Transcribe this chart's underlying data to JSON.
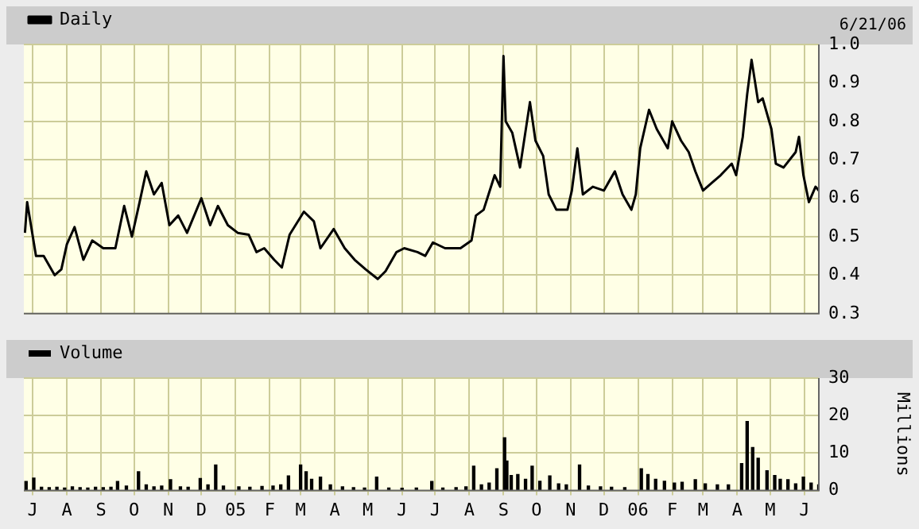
{
  "chart_data": [
    {
      "type": "line",
      "annotations": [
        "6/21/06"
      ],
      "legend": "top left",
      "grid": true,
      "marker": "none",
      "tick_labels": "y",
      "x": [
        "2004-06-24",
        "2004-06-26",
        "2004-06-30",
        "2004-07-04",
        "2004-07-11",
        "2004-07-21",
        "2004-07-27",
        "2004-08-01",
        "2004-08-08",
        "2004-08-16",
        "2004-08-24",
        "2004-09-03",
        "2004-09-14",
        "2004-09-22",
        "2004-09-29",
        "2004-10-06",
        "2004-10-12",
        "2004-10-19",
        "2004-10-26",
        "2004-11-02",
        "2004-11-10",
        "2004-11-18",
        "2004-12-01",
        "2004-12-09",
        "2004-12-16",
        "2004-12-25",
        "2005-01-03",
        "2005-01-13",
        "2005-01-20",
        "2005-01-27",
        "2005-02-05",
        "2005-02-12",
        "2005-02-19",
        "2005-03-04",
        "2005-03-13",
        "2005-03-19",
        "2005-03-31",
        "2005-04-10",
        "2005-04-19",
        "2005-04-29",
        "2005-05-10",
        "2005-05-17",
        "2005-05-27",
        "2005-06-03",
        "2005-06-15",
        "2005-06-22",
        "2005-06-29",
        "2005-07-10",
        "2005-07-24",
        "2005-08-03",
        "2005-08-07",
        "2005-08-14",
        "2005-08-24",
        "2005-08-29",
        "2005-09-01",
        "2005-09-03",
        "2005-09-09",
        "2005-09-16",
        "2005-09-25",
        "2005-09-30",
        "2005-10-07",
        "2005-10-12",
        "2005-10-19",
        "2005-10-29",
        "2005-11-02",
        "2005-11-07",
        "2005-11-12",
        "2005-11-21",
        "2005-12-01",
        "2005-12-11",
        "2005-12-18",
        "2005-12-26",
        "2005-12-30",
        "2006-01-03",
        "2006-01-11",
        "2006-01-18",
        "2006-01-28",
        "2006-02-01",
        "2006-02-09",
        "2006-02-16",
        "2006-02-22",
        "2006-03-01",
        "2006-03-09",
        "2006-03-17",
        "2006-03-27",
        "2006-03-31",
        "2006-04-06",
        "2006-04-10",
        "2006-04-14",
        "2006-04-20",
        "2006-04-24",
        "2006-05-02",
        "2006-05-06",
        "2006-05-13",
        "2006-05-24",
        "2006-05-27",
        "2006-05-31",
        "2006-06-05",
        "2006-06-11",
        "2006-06-14"
      ],
      "series": [
        {
          "name": "Daily",
          "color": "#000000",
          "values": [
            0.51,
            0.59,
            0.52,
            0.45,
            0.45,
            0.4,
            0.415,
            0.48,
            0.525,
            0.44,
            0.49,
            0.47,
            0.47,
            0.58,
            0.5,
            0.59,
            0.67,
            0.61,
            0.64,
            0.53,
            0.555,
            0.51,
            0.6,
            0.53,
            0.58,
            0.53,
            0.51,
            0.505,
            0.46,
            0.47,
            0.44,
            0.42,
            0.505,
            0.565,
            0.54,
            0.47,
            0.52,
            0.47,
            0.44,
            0.415,
            0.39,
            0.41,
            0.46,
            0.47,
            0.46,
            0.45,
            0.485,
            0.47,
            0.47,
            0.49,
            0.555,
            0.57,
            0.66,
            0.63,
            0.97,
            0.8,
            0.77,
            0.68,
            0.85,
            0.75,
            0.71,
            0.61,
            0.57,
            0.57,
            0.62,
            0.73,
            0.61,
            0.63,
            0.62,
            0.67,
            0.61,
            0.57,
            0.61,
            0.73,
            0.83,
            0.78,
            0.73,
            0.8,
            0.75,
            0.72,
            0.67,
            0.62,
            0.64,
            0.66,
            0.69,
            0.66,
            0.76,
            0.87,
            0.96,
            0.85,
            0.86,
            0.78,
            0.69,
            0.68,
            0.72,
            0.76,
            0.66,
            0.59,
            0.63,
            0.62
          ]
        }
      ],
      "xlim": [
        "2004-06-23",
        "2006-06-14"
      ],
      "xticks": [
        {
          "value": "2004-07-01",
          "label": null
        },
        {
          "value": "2004-08-01",
          "label": null
        },
        {
          "value": "2004-09-01",
          "label": null
        },
        {
          "value": "2004-10-01",
          "label": null
        },
        {
          "value": "2004-11-01",
          "label": null
        },
        {
          "value": "2004-12-01",
          "label": null
        },
        {
          "value": "2005-01-01",
          "label": null
        },
        {
          "value": "2005-02-01",
          "label": null
        },
        {
          "value": "2005-03-01",
          "label": null
        },
        {
          "value": "2005-04-01",
          "label": null
        },
        {
          "value": "2005-05-01",
          "label": null
        },
        {
          "value": "2005-06-01",
          "label": null
        },
        {
          "value": "2005-07-01",
          "label": null
        },
        {
          "value": "2005-08-01",
          "label": null
        },
        {
          "value": "2005-09-01",
          "label": null
        },
        {
          "value": "2005-10-01",
          "label": null
        },
        {
          "value": "2005-11-01",
          "label": null
        },
        {
          "value": "2005-12-01",
          "label": null
        },
        {
          "value": "2006-01-01",
          "label": null
        },
        {
          "value": "2006-02-01",
          "label": null
        },
        {
          "value": "2006-03-01",
          "label": null
        },
        {
          "value": "2006-04-01",
          "label": null
        },
        {
          "value": "2006-05-01",
          "label": null
        },
        {
          "value": "2006-06-01",
          "label": null
        }
      ],
      "ylim": [
        0.3,
        1.0
      ],
      "yticks": [
        0.3,
        0.4,
        0.5,
        0.6,
        0.7,
        0.8,
        0.9,
        {
          "value": 1.0,
          "label": "1.0"
        }
      ]
    },
    {
      "type": "bar",
      "ylabel": "Millions",
      "legend": "top left",
      "grid": true,
      "x": [
        "2004-06-25",
        "2004-07-02",
        "2004-07-09",
        "2004-07-16",
        "2004-07-23",
        "2004-07-30",
        "2004-08-06",
        "2004-08-13",
        "2004-08-20",
        "2004-08-27",
        "2004-09-03",
        "2004-09-10",
        "2004-09-16",
        "2004-09-24",
        "2004-10-05",
        "2004-10-12",
        "2004-10-19",
        "2004-10-26",
        "2004-11-03",
        "2004-11-12",
        "2004-11-19",
        "2004-11-30",
        "2004-12-07",
        "2004-12-14",
        "2004-12-21",
        "2005-01-04",
        "2005-01-14",
        "2005-01-25",
        "2005-02-04",
        "2005-02-11",
        "2005-02-18",
        "2005-03-01",
        "2005-03-06",
        "2005-03-11",
        "2005-03-19",
        "2005-03-28",
        "2005-04-08",
        "2005-04-18",
        "2005-04-28",
        "2005-05-09",
        "2005-05-20",
        "2005-06-01",
        "2005-06-14",
        "2005-06-28",
        "2005-07-08",
        "2005-07-20",
        "2005-07-29",
        "2005-08-05",
        "2005-08-12",
        "2005-08-19",
        "2005-08-26",
        "2005-09-02",
        "2005-09-04",
        "2005-09-08",
        "2005-09-14",
        "2005-09-21",
        "2005-09-27",
        "2005-10-04",
        "2005-10-13",
        "2005-10-21",
        "2005-10-28",
        "2005-11-09",
        "2005-11-17",
        "2005-11-28",
        "2005-12-08",
        "2005-12-20",
        "2006-01-04",
        "2006-01-10",
        "2006-01-17",
        "2006-01-25",
        "2006-02-03",
        "2006-02-10",
        "2006-02-22",
        "2006-03-03",
        "2006-03-14",
        "2006-03-24",
        "2006-04-05",
        "2006-04-10",
        "2006-04-15",
        "2006-04-20",
        "2006-04-28",
        "2006-05-05",
        "2006-05-10",
        "2006-05-17",
        "2006-05-24",
        "2006-05-31",
        "2006-06-07",
        "2006-06-14"
      ],
      "series": [
        {
          "name": "Volume",
          "color": "#000000",
          "values": [
            2.4,
            3.3,
            0.9,
            0.8,
            0.9,
            0.7,
            1.0,
            0.8,
            0.7,
            0.9,
            0.8,
            0.9,
            2.4,
            1.2,
            5.0,
            1.5,
            1.0,
            1.2,
            2.9,
            1.0,
            0.9,
            3.2,
            1.5,
            6.8,
            1.2,
            1.0,
            0.9,
            1.1,
            1.2,
            1.5,
            3.9,
            6.8,
            5.0,
            3.0,
            3.6,
            1.5,
            1.0,
            0.8,
            0.7,
            3.6,
            0.7,
            0.6,
            0.7,
            2.4,
            0.7,
            0.8,
            1.0,
            6.5,
            1.5,
            2.0,
            5.8,
            14.1,
            7.9,
            4.0,
            4.3,
            3.0,
            6.5,
            2.5,
            3.9,
            1.8,
            1.5,
            6.8,
            1.2,
            1.0,
            0.9,
            0.8,
            5.8,
            4.3,
            3.0,
            2.5,
            2.0,
            2.2,
            2.9,
            1.8,
            1.5,
            1.5,
            7.2,
            18.4,
            11.5,
            8.6,
            5.3,
            4.0,
            3.0,
            2.9,
            1.8,
            3.6,
            2.0,
            1.5
          ]
        }
      ],
      "xlim": [
        "2004-06-23",
        "2006-06-14"
      ],
      "xticks": [
        {
          "value": "2004-07-01",
          "label": "J"
        },
        {
          "value": "2004-08-01",
          "label": "A"
        },
        {
          "value": "2004-09-01",
          "label": "S"
        },
        {
          "value": "2004-10-01",
          "label": "O"
        },
        {
          "value": "2004-11-01",
          "label": "N"
        },
        {
          "value": "2004-12-01",
          "label": "D"
        },
        {
          "value": "2005-01-01",
          "label": "05"
        },
        {
          "value": "2005-02-01",
          "label": "F"
        },
        {
          "value": "2005-03-01",
          "label": "M"
        },
        {
          "value": "2005-04-01",
          "label": "A"
        },
        {
          "value": "2005-05-01",
          "label": "M"
        },
        {
          "value": "2005-06-01",
          "label": "J"
        },
        {
          "value": "2005-07-01",
          "label": "J"
        },
        {
          "value": "2005-08-01",
          "label": "A"
        },
        {
          "value": "2005-09-01",
          "label": "S"
        },
        {
          "value": "2005-10-01",
          "label": "O"
        },
        {
          "value": "2005-11-01",
          "label": "N"
        },
        {
          "value": "2005-12-01",
          "label": "D"
        },
        {
          "value": "2006-01-01",
          "label": "06"
        },
        {
          "value": "2006-02-01",
          "label": "F"
        },
        {
          "value": "2006-03-01",
          "label": "M"
        },
        {
          "value": "2006-04-01",
          "label": "A"
        },
        {
          "value": "2006-05-01",
          "label": "M"
        },
        {
          "value": "2006-06-01",
          "label": "J"
        }
      ],
      "ylim": [
        0,
        30
      ],
      "yticks": [
        0,
        10,
        20,
        30
      ]
    }
  ]
}
